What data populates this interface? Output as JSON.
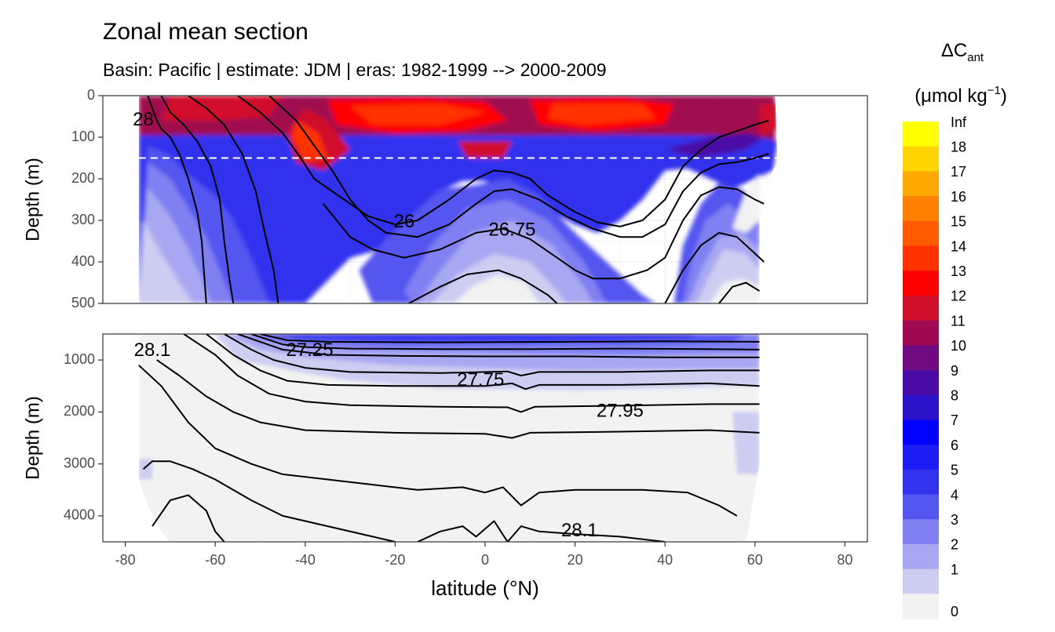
{
  "title": "Zonal mean section",
  "subtitle": "Basin: Pacific | estimate: JDM  | eras: 1982-1999 --> 2000-2009",
  "chart_data": {
    "type": "heatmap",
    "title": "Zonal mean section",
    "subtitle": "Basin: Pacific | estimate: JDM  | eras: 1982-1999 --> 2000-2009",
    "xlabel": "latitude (°N)",
    "ylabel": "Depth (m)",
    "xlim": [
      -85,
      85
    ],
    "x_ticks": [
      -80,
      -60,
      -40,
      -20,
      0,
      20,
      40,
      60,
      80
    ],
    "x_tick_labels": [
      "-80",
      "-60",
      "-40",
      "-20",
      "0",
      "20",
      "40",
      "60",
      "80"
    ],
    "panels": [
      {
        "name": "upper",
        "ylim": [
          0,
          500
        ],
        "y_ticks": [
          0,
          100,
          200,
          300,
          400,
          500
        ],
        "y_tick_labels": [
          "0",
          "100",
          "200",
          "300",
          "400",
          "500"
        ],
        "dashed_depth": 150,
        "contour_labels": [
          {
            "text": "26",
            "lat": -18,
            "depth": 305
          },
          {
            "text": "26.75",
            "lat": 6,
            "depth": 325
          },
          {
            "text": "28",
            "lat": -76,
            "depth": 60
          }
        ]
      },
      {
        "name": "lower",
        "ylim": [
          500,
          4500
        ],
        "y_ticks": [
          1000,
          2000,
          3000,
          4000
        ],
        "y_tick_labels": [
          "1000",
          "2000",
          "3000",
          "4000"
        ],
        "contour_labels": [
          {
            "text": "28.1",
            "lat": -74,
            "depth": 830
          },
          {
            "text": "27.25",
            "lat": -39,
            "depth": 830
          },
          {
            "text": "27.75",
            "lat": -1,
            "depth": 1400
          },
          {
            "text": "27.95",
            "lat": 30,
            "depth": 2000
          },
          {
            "text": "28.1",
            "lat": 21,
            "depth": 4300
          }
        ]
      }
    ],
    "legend": {
      "title_main": "ΔC",
      "title_sub": "ant",
      "unit_prefix": "(μmol kg",
      "unit_sup": "−1",
      "unit_suffix": ")",
      "placement": "right",
      "breaks": [
        "0",
        "1",
        "2",
        "3",
        "4",
        "5",
        "6",
        "7",
        "8",
        "9",
        "10",
        "11",
        "12",
        "13",
        "14",
        "15",
        "16",
        "17",
        "18",
        "Inf"
      ],
      "colors": [
        "#F2F2F2",
        "#CDCDF2",
        "#A8A8F2",
        "#8080F2",
        "#5555F0",
        "#3333EE",
        "#1C1CF5",
        "#0000FF",
        "#2A12C8",
        "#4A0AA6",
        "#700A80",
        "#A00A50",
        "#D0102A",
        "#FF0000",
        "#FF3300",
        "#FF5A00",
        "#FF8000",
        "#FFA800",
        "#FFD400",
        "#FFFF00"
      ]
    }
  }
}
